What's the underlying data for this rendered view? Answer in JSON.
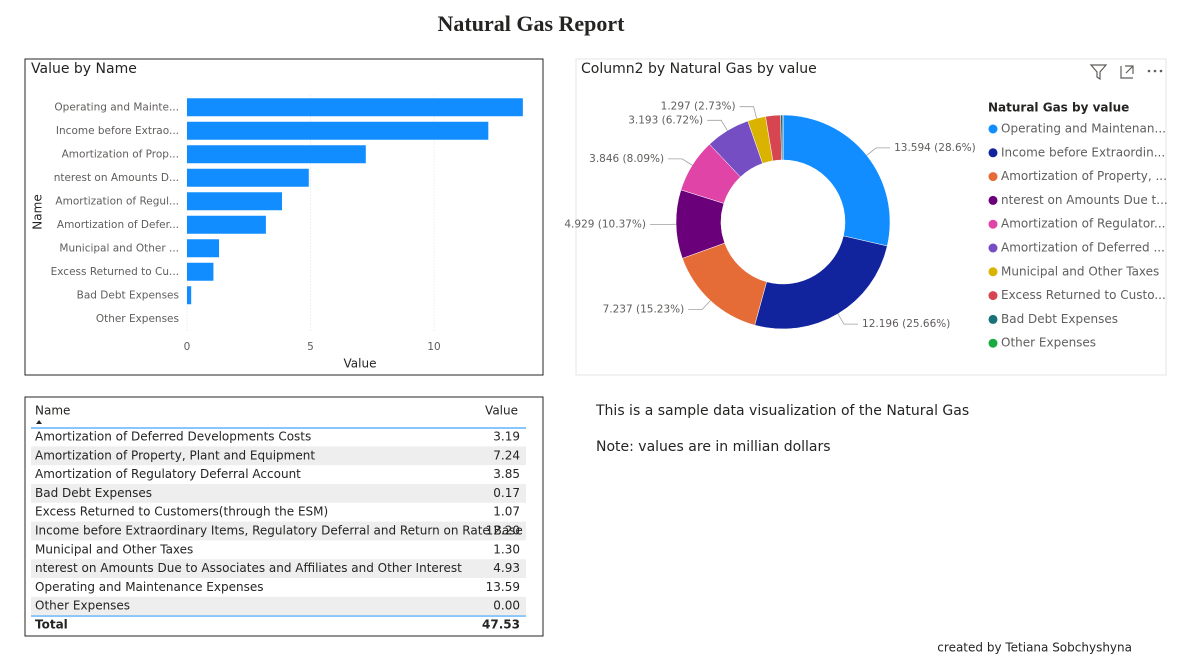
{
  "header": {
    "title": "Natural Gas Report"
  },
  "chart_data": [
    {
      "type": "bar",
      "title": "Value by Name",
      "x_label": "Value",
      "y_label": "Name",
      "categories": [
        "Operating and Mainte...",
        "Income before Extrao...",
        "Amortization of Prop...",
        "nterest on Amounts D...",
        "Amortization of Regul...",
        "Amortization of Defer...",
        "Municipal and Other ...",
        "Excess Returned to Cu...",
        "Bad Debt Expenses",
        "Other Expenses"
      ],
      "values": [
        13.594,
        12.196,
        7.237,
        4.929,
        3.846,
        3.193,
        1.297,
        1.07,
        0.17,
        0
      ],
      "color": "#118DFF",
      "xlim": [
        0,
        13.6
      ],
      "xticks": [
        0,
        5,
        10
      ],
      "grid": true
    },
    {
      "type": "donut",
      "title": "Column2 by Natural Gas by value",
      "legend_title": "Natural Gas by value",
      "series": [
        {
          "name": "Operating and Maintenan...",
          "color": "#118DFF"
        },
        {
          "name": "Income before Extraordin...",
          "color": "#12239E"
        },
        {
          "name": "Amortization of Property, ...",
          "color": "#E66C37"
        },
        {
          "name": "nterest on Amounts Due t...",
          "color": "#6B007B"
        },
        {
          "name": "Amortization of Regulator...",
          "color": "#E044A7"
        },
        {
          "name": "Amortization of Deferred ...",
          "color": "#744EC2"
        },
        {
          "name": "Municipal and Other Taxes",
          "color": "#D9B300"
        },
        {
          "name": "Excess Returned to Custo...",
          "color": "#D64550"
        },
        {
          "name": "Bad Debt Expenses",
          "color": "#197278"
        },
        {
          "name": "Other Expenses",
          "color": "#1AAB40"
        }
      ],
      "values": [
        13.594,
        12.196,
        7.237,
        4.929,
        3.846,
        3.193,
        1.297,
        1.07,
        0.17,
        0
      ],
      "value_labels": [
        "13.594 (28.6%)",
        "12.196 (25.66%)",
        "7.237 (15.23%)",
        "4.929 (10.37%)",
        "3.846 (8.09%)",
        "3.193 (6.72%)",
        "1.297 (2.73%)",
        null,
        null,
        null
      ],
      "legend": "right"
    }
  ],
  "table": {
    "columns": [
      "Name",
      "Value"
    ],
    "rows": [
      [
        "Amortization of Deferred Developments Costs",
        "3.19"
      ],
      [
        "Amortization of Property, Plant and Equipment",
        "7.24"
      ],
      [
        "Amortization of Regulatory Deferral Account",
        "3.85"
      ],
      [
        "Bad Debt Expenses",
        "0.17"
      ],
      [
        "Excess Returned to Customers(through the ESM)",
        "1.07"
      ],
      [
        "Income before Extraordinary Items, Regulatory Deferral and Return on Rate Base",
        "12.20"
      ],
      [
        "Municipal and Other Taxes",
        "1.30"
      ],
      [
        "nterest on Amounts Due to Associates and Affiliates and Other Interest",
        "4.93"
      ],
      [
        "Operating and Maintenance Expenses",
        "13.59"
      ],
      [
        "Other Expenses",
        "0.00"
      ]
    ],
    "total": [
      "Total",
      "47.53"
    ]
  },
  "notes": [
    "This is a sample data visualization of the Natural Gas",
    "Note: values are in millian dollars"
  ],
  "footer": {
    "credit": "created by Tetiana Sobchyshyna"
  }
}
